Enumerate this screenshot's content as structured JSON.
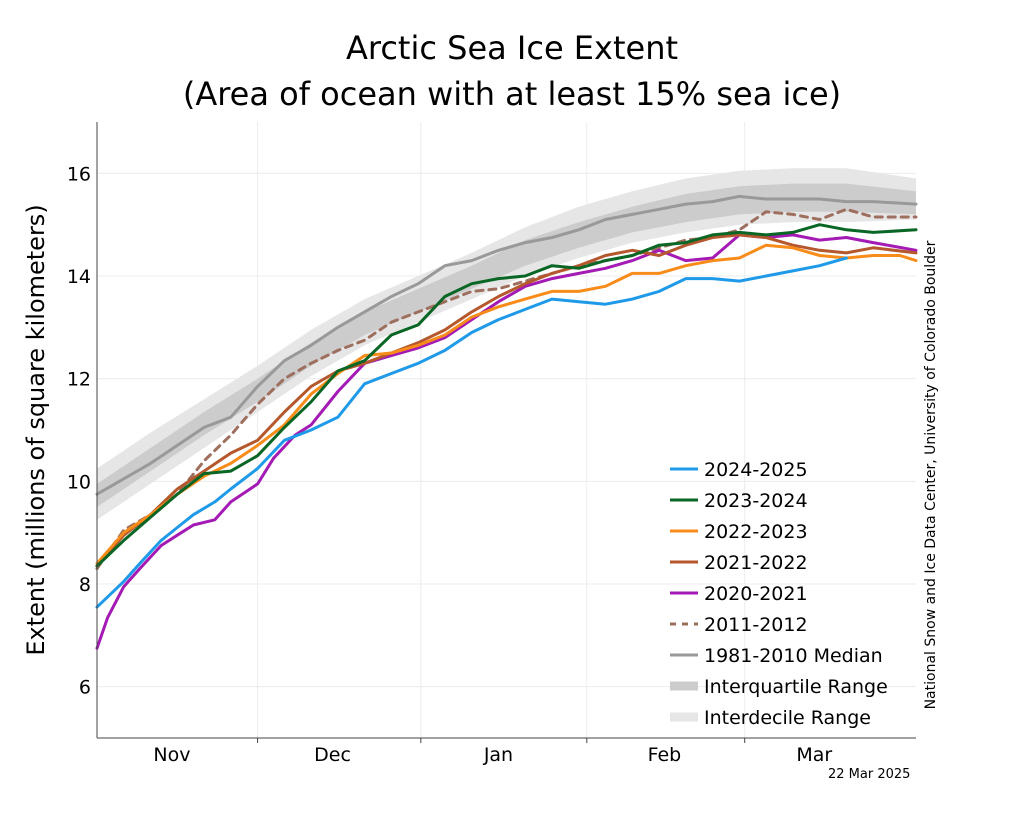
{
  "chart_data": {
    "type": "line",
    "title": "Arctic Sea Ice Extent",
    "subtitle": "(Area of ocean with at least 15% sea ice)",
    "ylabel": "Extent (millions of square kilometers)",
    "xlabel": "",
    "ylim": [
      5,
      17
    ],
    "yticks": [
      6,
      8,
      10,
      12,
      14,
      16
    ],
    "x_unit": "days since Oct 20",
    "xlim": [
      0,
      153
    ],
    "month_ticks": [
      {
        "label": "Nov",
        "x": 14
      },
      {
        "label": "Dec",
        "x": 44
      },
      {
        "label": "Jan",
        "x": 75
      },
      {
        "label": "Feb",
        "x": 106
      },
      {
        "label": "Mar",
        "x": 134
      }
    ],
    "grid": true,
    "legend_position": "lower-right",
    "credit": "National Snow and Ice Data Center, University of Colorado Boulder",
    "date_stamp": "22 Mar 2025",
    "ranges": [
      {
        "name": "Interdecile Range",
        "color": "#e6e6e6",
        "x": [
          0,
          10,
          20,
          30,
          40,
          50,
          60,
          70,
          80,
          90,
          100,
          110,
          120,
          130,
          140,
          153
        ],
        "low": [
          9.25,
          9.95,
          10.65,
          11.35,
          12.05,
          12.65,
          13.1,
          13.55,
          14.0,
          14.35,
          14.65,
          14.85,
          15.0,
          15.05,
          15.05,
          15.1
        ],
        "high": [
          10.25,
          10.95,
          11.6,
          12.25,
          12.95,
          13.55,
          14.0,
          14.45,
          14.95,
          15.35,
          15.65,
          15.9,
          16.05,
          16.1,
          16.1,
          15.9
        ]
      },
      {
        "name": "Interquartile Range",
        "color": "#cccccc",
        "x": [
          0,
          10,
          20,
          30,
          40,
          50,
          60,
          70,
          80,
          90,
          100,
          110,
          120,
          130,
          140,
          153
        ],
        "low": [
          9.5,
          10.2,
          10.9,
          11.55,
          12.25,
          12.85,
          13.3,
          13.75,
          14.2,
          14.55,
          14.85,
          15.05,
          15.2,
          15.25,
          15.25,
          15.2
        ],
        "high": [
          9.95,
          10.65,
          11.35,
          12.0,
          12.7,
          13.3,
          13.75,
          14.2,
          14.7,
          15.05,
          15.35,
          15.6,
          15.75,
          15.8,
          15.8,
          15.65
        ]
      }
    ],
    "series": [
      {
        "name": "1981-2010 Median",
        "color": "#999999",
        "dash": false,
        "width": 3,
        "x": [
          0,
          10,
          20,
          25,
          30,
          35,
          40,
          45,
          50,
          55,
          60,
          65,
          70,
          75,
          80,
          85,
          90,
          95,
          100,
          105,
          110,
          115,
          120,
          125,
          130,
          135,
          140,
          145,
          153
        ],
        "y": [
          9.75,
          10.35,
          11.05,
          11.25,
          11.85,
          12.35,
          12.65,
          13.0,
          13.3,
          13.6,
          13.85,
          14.2,
          14.3,
          14.5,
          14.65,
          14.75,
          14.9,
          15.1,
          15.2,
          15.3,
          15.4,
          15.45,
          15.55,
          15.5,
          15.5,
          15.5,
          15.45,
          15.45,
          15.4
        ]
      },
      {
        "name": "2011-2012",
        "color": "#9e6f5e",
        "dash": true,
        "width": 3,
        "x": [
          0,
          5,
          10,
          15,
          20,
          25,
          30,
          35,
          40,
          45,
          50,
          55,
          60,
          65,
          70,
          75,
          80,
          85,
          90,
          95,
          100,
          105,
          110,
          115,
          120,
          125,
          130,
          135,
          140,
          145,
          153
        ],
        "y": [
          8.3,
          9.05,
          9.35,
          9.75,
          10.4,
          10.9,
          11.5,
          12.0,
          12.3,
          12.55,
          12.75,
          13.1,
          13.3,
          13.5,
          13.7,
          13.75,
          13.9,
          14.05,
          14.2,
          14.3,
          14.4,
          14.55,
          14.7,
          14.75,
          14.9,
          15.25,
          15.2,
          15.1,
          15.3,
          15.15,
          15.15
        ]
      },
      {
        "name": "2020-2021",
        "color": "#a41ab4",
        "dash": false,
        "width": 3,
        "x": [
          0,
          2,
          5,
          8,
          12,
          15,
          18,
          22,
          25,
          30,
          33,
          37,
          40,
          45,
          50,
          55,
          60,
          65,
          70,
          75,
          80,
          85,
          90,
          95,
          100,
          105,
          110,
          115,
          120,
          125,
          130,
          135,
          140,
          145,
          153
        ],
        "y": [
          6.75,
          7.35,
          7.95,
          8.3,
          8.75,
          8.95,
          9.15,
          9.25,
          9.6,
          9.95,
          10.45,
          10.9,
          11.1,
          11.75,
          12.3,
          12.45,
          12.6,
          12.8,
          13.15,
          13.5,
          13.8,
          13.95,
          14.05,
          14.15,
          14.3,
          14.5,
          14.3,
          14.35,
          14.8,
          14.75,
          14.8,
          14.7,
          14.75,
          14.65,
          14.5
        ]
      },
      {
        "name": "2021-2022",
        "color": "#b5582d",
        "dash": false,
        "width": 3,
        "x": [
          0,
          5,
          10,
          15,
          20,
          25,
          30,
          35,
          40,
          45,
          50,
          55,
          60,
          65,
          70,
          75,
          80,
          85,
          90,
          95,
          100,
          105,
          110,
          115,
          120,
          125,
          130,
          135,
          140,
          145,
          153
        ],
        "y": [
          8.35,
          8.95,
          9.35,
          9.85,
          10.2,
          10.55,
          10.8,
          11.35,
          11.85,
          12.15,
          12.3,
          12.5,
          12.7,
          12.95,
          13.3,
          13.6,
          13.85,
          14.05,
          14.2,
          14.4,
          14.5,
          14.4,
          14.6,
          14.75,
          14.8,
          14.75,
          14.6,
          14.5,
          14.45,
          14.55,
          14.45
        ]
      },
      {
        "name": "2022-2023",
        "color": "#f88c1a",
        "dash": false,
        "width": 3,
        "x": [
          0,
          5,
          10,
          15,
          20,
          25,
          30,
          35,
          40,
          45,
          50,
          55,
          60,
          65,
          70,
          75,
          80,
          85,
          90,
          95,
          100,
          105,
          110,
          115,
          120,
          125,
          130,
          135,
          140,
          145,
          150,
          153
        ],
        "y": [
          8.4,
          9.0,
          9.35,
          9.75,
          10.1,
          10.35,
          10.7,
          11.1,
          11.7,
          12.1,
          12.45,
          12.5,
          12.65,
          12.85,
          13.2,
          13.4,
          13.55,
          13.7,
          13.7,
          13.8,
          14.05,
          14.05,
          14.2,
          14.3,
          14.35,
          14.6,
          14.55,
          14.4,
          14.35,
          14.4,
          14.4,
          14.3
        ]
      },
      {
        "name": "2023-2024",
        "color": "#0a6625",
        "dash": false,
        "width": 3,
        "x": [
          0,
          5,
          10,
          15,
          20,
          25,
          30,
          35,
          40,
          45,
          50,
          55,
          60,
          65,
          70,
          75,
          80,
          85,
          90,
          95,
          100,
          105,
          110,
          115,
          120,
          125,
          130,
          135,
          140,
          145,
          153
        ],
        "y": [
          8.35,
          8.85,
          9.3,
          9.75,
          10.15,
          10.2,
          10.5,
          11.05,
          11.55,
          12.15,
          12.35,
          12.85,
          13.05,
          13.6,
          13.85,
          13.95,
          14.0,
          14.2,
          14.15,
          14.3,
          14.4,
          14.6,
          14.65,
          14.8,
          14.85,
          14.8,
          14.85,
          15.0,
          14.9,
          14.85,
          14.9
        ]
      },
      {
        "name": "2024-2025",
        "color": "#1f9ae8",
        "dash": false,
        "width": 3,
        "x": [
          0,
          3,
          5,
          8,
          12,
          15,
          18,
          22,
          25,
          30,
          35,
          40,
          45,
          50,
          55,
          60,
          65,
          70,
          75,
          80,
          85,
          90,
          95,
          100,
          105,
          110,
          115,
          120,
          125,
          130,
          135,
          140
        ],
        "y": [
          7.55,
          7.85,
          8.05,
          8.4,
          8.85,
          9.1,
          9.35,
          9.6,
          9.85,
          10.25,
          10.8,
          11.0,
          11.25,
          11.9,
          12.1,
          12.3,
          12.55,
          12.9,
          13.15,
          13.35,
          13.55,
          13.5,
          13.45,
          13.55,
          13.7,
          13.95,
          13.95,
          13.9,
          14.0,
          14.1,
          14.2,
          14.35
        ]
      }
    ],
    "legend": [
      {
        "label": "2024-2025",
        "color": "#1f9ae8",
        "style": "line"
      },
      {
        "label": "2023-2024",
        "color": "#0a6625",
        "style": "line"
      },
      {
        "label": "2022-2023",
        "color": "#f88c1a",
        "style": "line"
      },
      {
        "label": "2021-2022",
        "color": "#b5582d",
        "style": "line"
      },
      {
        "label": "2020-2021",
        "color": "#a41ab4",
        "style": "line"
      },
      {
        "label": "2011-2012",
        "color": "#9e6f5e",
        "style": "dash"
      },
      {
        "label": "1981-2010 Median",
        "color": "#999999",
        "style": "line"
      },
      {
        "label": "Interquartile Range",
        "color": "#cccccc",
        "style": "band"
      },
      {
        "label": "Interdecile Range",
        "color": "#e6e6e6",
        "style": "band"
      }
    ]
  }
}
